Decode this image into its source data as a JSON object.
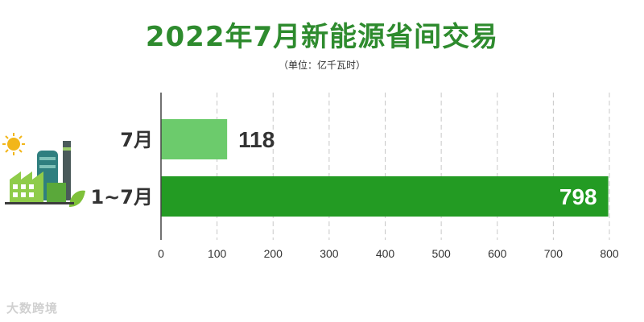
{
  "title": "2022年7月新能源省间交易",
  "unit_label": "（单位：亿千瓦时）",
  "watermark": "大数跨境",
  "colors": {
    "title": "#2e8b2e",
    "bar_month": "#6ccb6c",
    "bar_cumulative": "#239b23",
    "grid": "#c8c8c8",
    "axis": "#444444"
  },
  "chart_data": {
    "type": "bar",
    "orientation": "horizontal",
    "categories": [
      "7月",
      "1~7月"
    ],
    "values": [
      118,
      798
    ],
    "xlim": [
      0,
      800
    ],
    "xticks": [
      0,
      100,
      200,
      300,
      400,
      500,
      600,
      700,
      800
    ],
    "grid": true,
    "value_label_position": [
      "outside",
      "inside"
    ]
  }
}
